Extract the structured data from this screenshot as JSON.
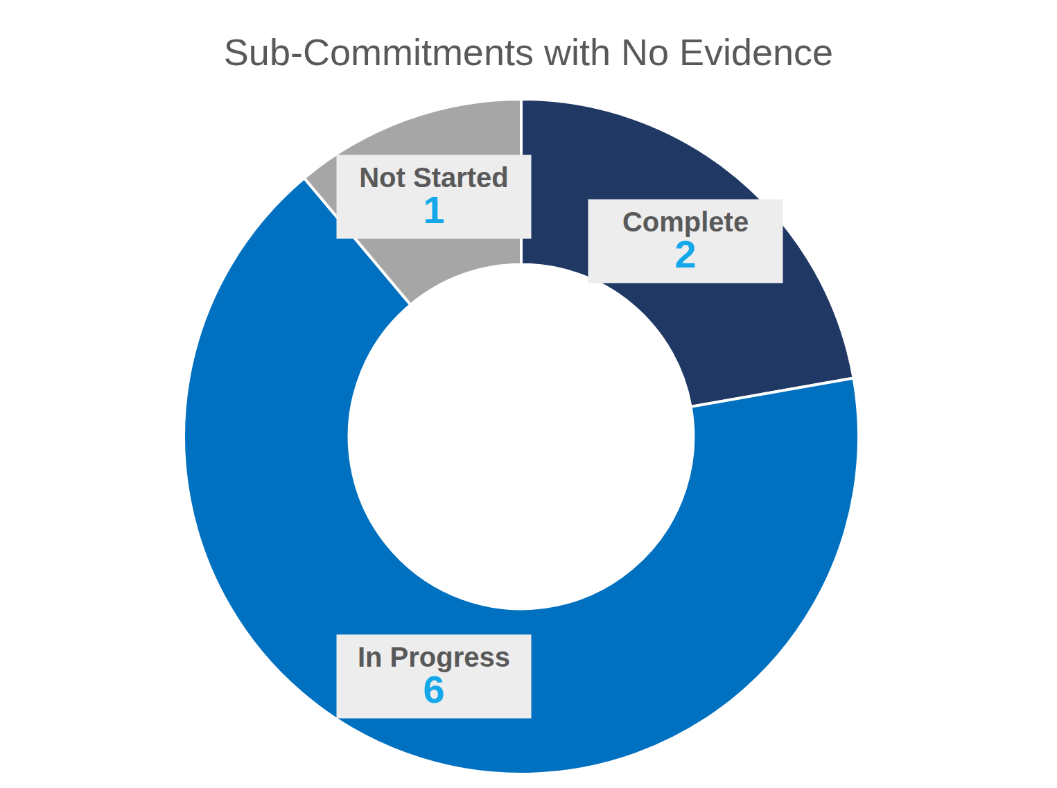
{
  "chart_data": {
    "type": "donut",
    "title": "Sub-Commitments with No Evidence",
    "categories": [
      "Complete",
      "In Progress",
      "Not Started"
    ],
    "values": [
      2,
      6,
      1
    ],
    "colors": [
      "#203864",
      "#0070C0",
      "#A6A6A6"
    ],
    "data_labels": true
  }
}
